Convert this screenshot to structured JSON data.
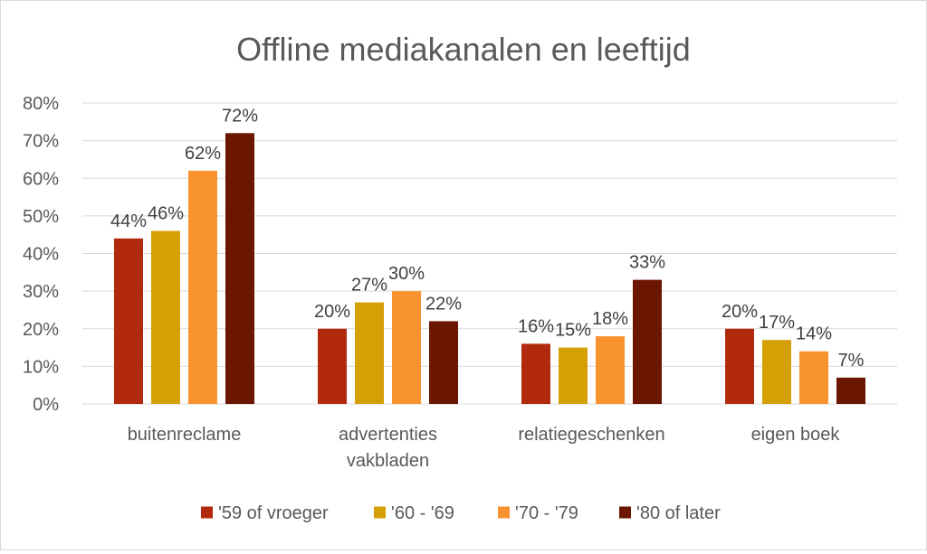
{
  "chart_data": {
    "type": "bar",
    "title": "Offline mediakanalen en leeftijd",
    "categories": [
      [
        "buitenreclame"
      ],
      [
        "advertenties",
        "vakbladen"
      ],
      [
        "relatiegeschenken"
      ],
      [
        "eigen boek"
      ]
    ],
    "series": [
      {
        "name": "'59 of vroeger",
        "color": "#b22a0e",
        "values": [
          44,
          20,
          16,
          20
        ]
      },
      {
        "name": "'60 - '69",
        "color": "#d4a006",
        "values": [
          46,
          27,
          15,
          17
        ]
      },
      {
        "name": "'70 - '79",
        "color": "#f99330",
        "values": [
          62,
          30,
          18,
          14
        ]
      },
      {
        "name": "'80 of later",
        "color": "#6b1600",
        "values": [
          72,
          22,
          33,
          7
        ]
      }
    ],
    "value_suffix": "%",
    "ylim": [
      0,
      80
    ],
    "yticks": [
      "0%",
      "10%",
      "20%",
      "30%",
      "40%",
      "50%",
      "60%",
      "70%",
      "80%"
    ],
    "grid": true,
    "legend_position": "bottom"
  }
}
